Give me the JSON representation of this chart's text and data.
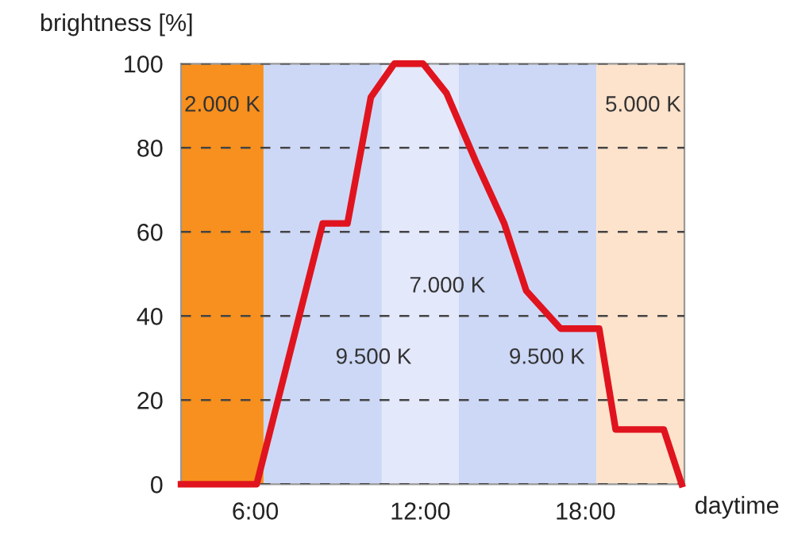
{
  "chart_data": {
    "type": "line",
    "ylabel": "brightness [%]",
    "xlabel": "daytime",
    "x": [
      3.3,
      6.05,
      8.45,
      9.35,
      10.2,
      11.05,
      12.1,
      12.95,
      14.0,
      15.05,
      15.85,
      17.1,
      18.5,
      19.1,
      20.85,
      21.5
    ],
    "series": [
      {
        "color": "#e0141e",
        "values": [
          0,
          0,
          62,
          62,
          92,
          100,
          100,
          93,
          77,
          62,
          46,
          37,
          37,
          13,
          13,
          0
        ]
      }
    ],
    "xlim": [
      3.3,
      21.6
    ],
    "xticks": [
      {
        "value": 6,
        "label": "6:00"
      },
      {
        "value": 12,
        "label": "12:00"
      },
      {
        "value": 18,
        "label": "18:00"
      }
    ],
    "ylim": [
      0,
      100
    ],
    "yticks": [
      0,
      20,
      40,
      60,
      80,
      100
    ],
    "grid": "y",
    "marker": "none",
    "line_style": "solid",
    "bands": [
      {
        "axis": "x",
        "from": 3.3,
        "to": 6.3,
        "label": "2.000 K",
        "color": "#f7901e"
      },
      {
        "axis": "x",
        "from": 6.3,
        "to": 10.6,
        "label": "9.500 K",
        "color": "#cdd8f6"
      },
      {
        "axis": "x",
        "from": 10.6,
        "to": 13.4,
        "label": "7.000 K",
        "color": "#e3e8fa"
      },
      {
        "axis": "x",
        "from": 13.4,
        "to": 18.4,
        "label": "9.500 K",
        "color": "#cdd8f6"
      },
      {
        "axis": "x",
        "from": 18.4,
        "to": 21.6,
        "label": "5.000 K",
        "color": "#fde3cc"
      }
    ]
  }
}
